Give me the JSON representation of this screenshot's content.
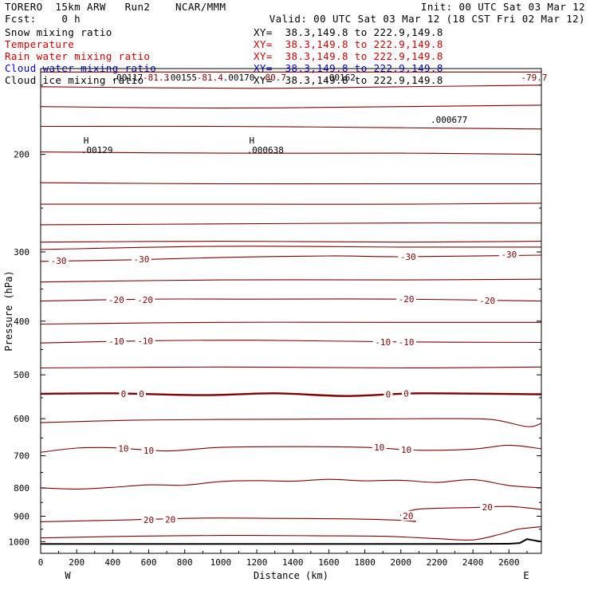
{
  "header": {
    "model": "TORERO  15km ARW   Run2    NCAR/MMM",
    "init": "Init: 00 UTC Sat 03 Mar 12",
    "fcst": "Fcst:    0 h",
    "valid": "Valid: 00 UTC Sat 03 Mar 12 (18 CST Fri 02 Mar 12)"
  },
  "fields": [
    {
      "name": "Snow mixing ratio",
      "xy": "",
      "color": "#000000"
    },
    {
      "name": "Temperature",
      "xy": "XY=  38.3,149.8 to 222.9,149.8",
      "color": "#cc0000"
    },
    {
      "name": "Rain water mixing ratio",
      "xy": "XY=  38.3,149.8 to 222.9,149.8",
      "color": "#cc0000"
    },
    {
      "name": "Cloud water mixing ratio",
      "xy": "XY=  38.3,149.8 to 222.9,149.8",
      "color": "#0000cc"
    },
    {
      "name": "Cloud ice mixing ratio",
      "xy": "XY=  38.3,149.8 to 222.9,149.8",
      "color": "#000000"
    }
  ],
  "snow_xy": "XY=  38.3,149.8 to 222.9,149.8",
  "chart_data": {
    "type": "line",
    "xlabel": "Distance (km)",
    "ylabel": "Pressure (hPa)",
    "xlim": [
      0,
      2780
    ],
    "ylim": [
      1050,
      140
    ],
    "y_scale": "log",
    "x_ticks": [
      0,
      200,
      400,
      600,
      800,
      1000,
      1200,
      1400,
      1600,
      1800,
      2000,
      2200,
      2400,
      2600
    ],
    "x_tick_labels": [
      "0",
      "200",
      "400",
      "600",
      "800",
      "1000",
      "1200",
      "1400",
      "1600",
      "1800",
      "2000",
      "2200",
      "2400",
      "2600"
    ],
    "y_ticks": [
      200,
      300,
      400,
      500,
      600,
      700,
      800,
      900,
      1000
    ],
    "y_tick_labels": [
      "200",
      "300",
      "400",
      "500",
      "600",
      "700",
      "800",
      "900",
      "1000"
    ],
    "left_end_label": "W",
    "right_end_label": "E",
    "grid": false,
    "contour_color": "#800000",
    "isotherms": [
      {
        "level": -80,
        "points": [
          [
            0,
            142
          ],
          [
            1000,
            142
          ],
          [
            2000,
            142
          ],
          [
            2780,
            142
          ]
        ]
      },
      {
        "level": -75,
        "points": [
          [
            0,
            151
          ],
          [
            1200,
            152
          ],
          [
            2000,
            151
          ],
          [
            2780,
            150
          ]
        ]
      },
      {
        "level": -70,
        "points": [
          [
            0,
            164
          ],
          [
            1000,
            165
          ],
          [
            2000,
            164
          ],
          [
            2780,
            163
          ]
        ]
      },
      {
        "level": -65,
        "points": [
          [
            0,
            178
          ],
          [
            1000,
            178
          ],
          [
            2000,
            179
          ],
          [
            2780,
            180
          ]
        ]
      },
      {
        "level": -60,
        "points": [
          [
            0,
            198
          ],
          [
            1000,
            199
          ],
          [
            2000,
            199
          ],
          [
            2780,
            200
          ]
        ]
      },
      {
        "level": -55,
        "points": [
          [
            0,
            225
          ],
          [
            1000,
            226
          ],
          [
            2000,
            226
          ],
          [
            2780,
            226
          ]
        ]
      },
      {
        "level": -50,
        "points": [
          [
            0,
            246
          ],
          [
            1200,
            246
          ],
          [
            2000,
            246
          ],
          [
            2780,
            245
          ]
        ]
      },
      {
        "level": -45,
        "points": [
          [
            0,
            268
          ],
          [
            1000,
            267
          ],
          [
            2000,
            266
          ],
          [
            2780,
            266
          ]
        ]
      },
      {
        "level": -40,
        "points": [
          [
            0,
            288
          ],
          [
            1000,
            287
          ],
          [
            2000,
            288
          ],
          [
            2780,
            287
          ]
        ]
      },
      {
        "level": -35,
        "points": [
          [
            0,
            297
          ],
          [
            1000,
            293
          ],
          [
            2000,
            294
          ],
          [
            2780,
            294
          ]
        ]
      },
      {
        "level": -30,
        "points": [
          [
            0,
            312
          ],
          [
            500,
            310
          ],
          [
            1000,
            307
          ],
          [
            1600,
            305
          ],
          [
            2000,
            306
          ],
          [
            2780,
            304
          ]
        ]
      },
      {
        "level": -25,
        "points": [
          [
            0,
            340
          ],
          [
            1000,
            337
          ],
          [
            2000,
            337
          ],
          [
            2780,
            336
          ]
        ]
      },
      {
        "level": -20,
        "points": [
          [
            0,
            368
          ],
          [
            600,
            365
          ],
          [
            1200,
            365
          ],
          [
            2000,
            365
          ],
          [
            2780,
            368
          ]
        ]
      },
      {
        "level": -15,
        "points": [
          [
            0,
            405
          ],
          [
            1000,
            402
          ],
          [
            2000,
            402
          ],
          [
            2780,
            402
          ]
        ]
      },
      {
        "level": -10,
        "points": [
          [
            0,
            438
          ],
          [
            600,
            434
          ],
          [
            1200,
            433
          ],
          [
            2000,
            436
          ],
          [
            2780,
            437
          ]
        ]
      },
      {
        "level": -5,
        "points": [
          [
            0,
            486
          ],
          [
            1000,
            484
          ],
          [
            2000,
            486
          ],
          [
            2780,
            484
          ]
        ]
      },
      {
        "level": 0,
        "points": [
          [
            0,
            541
          ],
          [
            400,
            540
          ],
          [
            900,
            544
          ],
          [
            1300,
            540
          ],
          [
            1700,
            546
          ],
          [
            2100,
            540
          ],
          [
            2780,
            542
          ]
        ]
      },
      {
        "level": 5,
        "points": [
          [
            0,
            610
          ],
          [
            500,
            604
          ],
          [
            1000,
            602
          ],
          [
            1600,
            601
          ],
          [
            2200,
            600
          ],
          [
            2500,
            602
          ],
          [
            2700,
            620
          ],
          [
            2780,
            612
          ]
        ]
      },
      {
        "level": 10,
        "points": [
          [
            0,
            690
          ],
          [
            200,
            678
          ],
          [
            400,
            677
          ],
          [
            700,
            686
          ],
          [
            1000,
            676
          ],
          [
            1400,
            674
          ],
          [
            1800,
            676
          ],
          [
            2100,
            684
          ],
          [
            2400,
            681
          ],
          [
            2600,
            670
          ],
          [
            2780,
            680
          ]
        ]
      },
      {
        "level": 15,
        "points": [
          [
            0,
            800
          ],
          [
            200,
            804
          ],
          [
            400,
            798
          ],
          [
            600,
            790
          ],
          [
            800,
            791
          ],
          [
            1000,
            779
          ],
          [
            1200,
            776
          ],
          [
            1400,
            778
          ],
          [
            1600,
            772
          ],
          [
            1800,
            777
          ],
          [
            2000,
            775
          ],
          [
            2200,
            782
          ],
          [
            2400,
            773
          ],
          [
            2600,
            792
          ],
          [
            2780,
            800
          ]
        ]
      },
      {
        "level": 20,
        "points": [
          [
            0,
            921
          ],
          [
            400,
            915
          ],
          [
            900,
            907
          ],
          [
            1300,
            908
          ],
          [
            1700,
            910
          ],
          [
            2000,
            915
          ],
          [
            2080,
            920
          ],
          [
            2040,
            904
          ],
          [
            2000,
            895
          ],
          [
            2100,
            874
          ],
          [
            2400,
            868
          ],
          [
            2600,
            864
          ],
          [
            2780,
            875
          ]
        ]
      },
      {
        "level": 25,
        "points": [
          [
            0,
            985
          ],
          [
            500,
            978
          ],
          [
            1000,
            975
          ],
          [
            1500,
            976
          ],
          [
            1900,
            978
          ],
          [
            2200,
            988
          ],
          [
            2400,
            993
          ],
          [
            2550,
            970
          ],
          [
            2650,
            950
          ],
          [
            2780,
            940
          ]
        ]
      }
    ],
    "contour_labels": [
      {
        "text": "-30",
        "x": 100,
        "p": 311
      },
      {
        "text": "-30",
        "x": 560,
        "p": 309
      },
      {
        "text": "-30",
        "x": 2040,
        "p": 306
      },
      {
        "text": "-30",
        "x": 2600,
        "p": 303
      },
      {
        "text": "-20",
        "x": 420,
        "p": 366
      },
      {
        "text": "-20",
        "x": 580,
        "p": 366
      },
      {
        "text": "-20",
        "x": 2030,
        "p": 365
      },
      {
        "text": "-20",
        "x": 2480,
        "p": 367
      },
      {
        "text": "-10",
        "x": 420,
        "p": 435
      },
      {
        "text": "-10",
        "x": 580,
        "p": 434
      },
      {
        "text": "-10",
        "x": 1900,
        "p": 436
      },
      {
        "text": "-10",
        "x": 2030,
        "p": 436
      },
      {
        "text": "0",
        "x": 460,
        "p": 541
      },
      {
        "text": "0",
        "x": 560,
        "p": 541
      },
      {
        "text": "0",
        "x": 1930,
        "p": 542
      },
      {
        "text": "0",
        "x": 2030,
        "p": 540
      },
      {
        "text": "10",
        "x": 460,
        "p": 679
      },
      {
        "text": "10",
        "x": 600,
        "p": 685
      },
      {
        "text": "10",
        "x": 1880,
        "p": 676
      },
      {
        "text": "10",
        "x": 2030,
        "p": 683
      },
      {
        "text": "20",
        "x": 600,
        "p": 913
      },
      {
        "text": "20",
        "x": 720,
        "p": 912
      },
      {
        "text": "20",
        "x": 2040,
        "p": 898
      },
      {
        "text": "20",
        "x": 2480,
        "p": 867
      }
    ],
    "markers": [
      {
        "symbol": "H",
        "value": ".00129",
        "x": 260,
        "p": 195
      },
      {
        "symbol": "H",
        "value": ".000638",
        "x": 1180,
        "p": 195
      },
      {
        "symbol": "",
        "value": ".000677",
        "x": 2200,
        "p": 172
      }
    ],
    "top_labels": [
      {
        "text": ".00117",
        "x": 480,
        "color": "#000000"
      },
      {
        "text": "-81.3",
        "x": 640,
        "color": "#800000"
      },
      {
        "text": ".00155",
        "x": 780,
        "color": "#000000"
      },
      {
        "text": "-81.4",
        "x": 940,
        "color": "#800000"
      },
      {
        "text": ".00170",
        "x": 1100,
        "color": "#000000"
      },
      {
        "text": "-80.7",
        "x": 1290,
        "color": "#800000"
      },
      {
        "text": ".00162",
        "x": 1660,
        "color": "#000000"
      },
      {
        "text": "-79.7",
        "x": 2740,
        "color": "#800000"
      }
    ],
    "surface": [
      [
        0,
        1010
      ],
      [
        2300,
        1010
      ],
      [
        2600,
        1009
      ],
      [
        2660,
        1006
      ],
      [
        2700,
        990
      ],
      [
        2740,
        995
      ],
      [
        2780,
        1000
      ]
    ]
  }
}
